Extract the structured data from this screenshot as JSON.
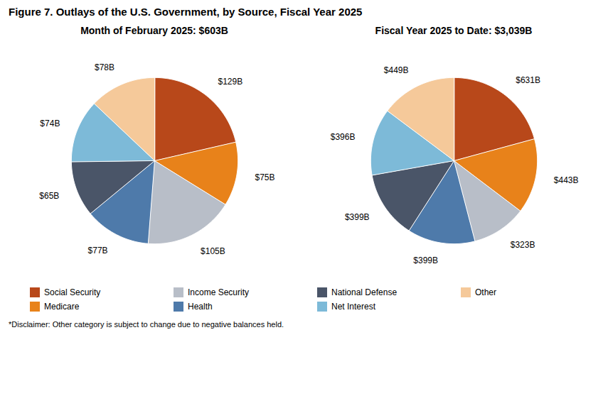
{
  "chart_data": [
    {
      "type": "pie",
      "title": "Figure 7. Outlays of the U.S. Government, by Source, Fiscal Year 2025",
      "subtitle": "Month of February 2025: $603B",
      "categories": [
        "Social Security",
        "Medicare",
        "Income Security",
        "Health",
        "National Defense",
        "Net Interest",
        "Other"
      ],
      "values": [
        129,
        75,
        105,
        77,
        65,
        74,
        78
      ],
      "value_labels": [
        "$129B",
        "$75B",
        "$105B",
        "$77B",
        "$65B",
        "$74B",
        "$78B"
      ],
      "colors": [
        "#B8481A",
        "#E8821A",
        "#B8BEC8",
        "#4E7AAA",
        "#4A5568",
        "#7DBAD8",
        "#F5C99A"
      ],
      "data_labels": true,
      "legend": "bottom"
    },
    {
      "type": "pie",
      "subtitle": "Fiscal Year 2025 to Date: $3,039B",
      "categories": [
        "Social Security",
        "Medicare",
        "Income Security",
        "Health",
        "National Defense",
        "Net Interest",
        "Other"
      ],
      "values": [
        631,
        443,
        323,
        399,
        399,
        396,
        449
      ],
      "value_labels": [
        "$631B",
        "$443B",
        "$323B",
        "$399B",
        "$399B",
        "$396B",
        "$449B"
      ],
      "colors": [
        "#B8481A",
        "#E8821A",
        "#B8BEC8",
        "#4E7AAA",
        "#4A5568",
        "#7DBAD8",
        "#F5C99A"
      ],
      "data_labels": true,
      "legend": "bottom",
      "annotations": [
        "*Disclaimer: Other category is subject to change due to negative balances held."
      ]
    }
  ]
}
